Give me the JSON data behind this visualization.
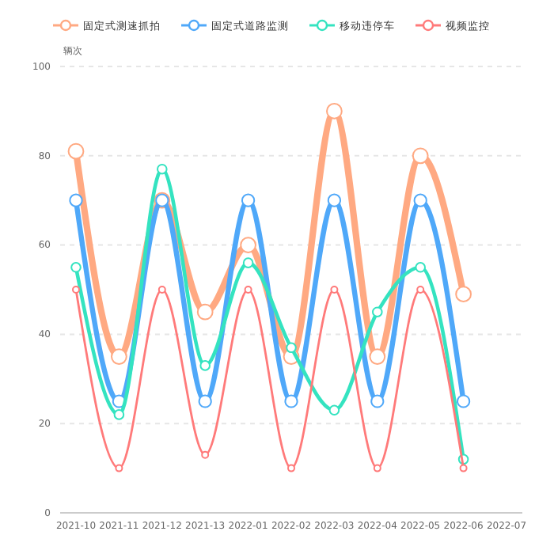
{
  "chart_data": {
    "type": "line",
    "ylabel": "辆次",
    "categories": [
      "2021-10",
      "2021-11",
      "2021-12",
      "2021-13",
      "2022-01",
      "2022-02",
      "2022-03",
      "2022-04",
      "2022-05",
      "2022-06",
      "2022-07"
    ],
    "series": [
      {
        "name": "固定式测速抓拍",
        "color": "#ffa982",
        "values": [
          81,
          35,
          70,
          45,
          60,
          35,
          90,
          35,
          80,
          49,
          null
        ]
      },
      {
        "name": "固定式道路监测",
        "color": "#4fa8f9",
        "values": [
          70,
          25,
          70,
          25,
          70,
          25,
          70,
          25,
          70,
          25,
          null
        ]
      },
      {
        "name": "移动违停车",
        "color": "#34e3c0",
        "values": [
          55,
          22,
          77,
          33,
          56,
          37,
          23,
          45,
          55,
          12,
          null
        ]
      },
      {
        "name": "视频监控",
        "color": "#ff7a7a",
        "values": [
          50,
          10,
          50,
          13,
          50,
          10,
          50,
          10,
          50,
          10,
          null
        ]
      }
    ],
    "ylim": [
      0,
      100
    ],
    "yticks": [
      0,
      20,
      40,
      60,
      80,
      100
    ],
    "grid": "y",
    "legend": "top",
    "marker": "circle",
    "line_style": "solid"
  }
}
